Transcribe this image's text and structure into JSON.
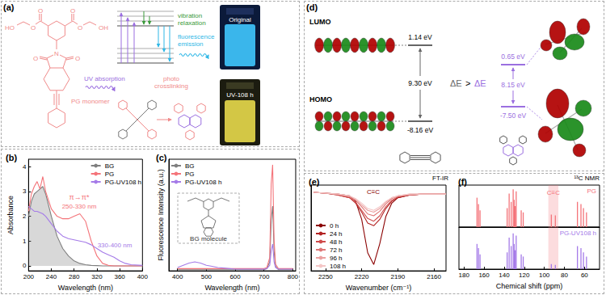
{
  "panel_a": {
    "label": "(a)",
    "molecule_label": "PG monomer",
    "atoms": [
      "HO",
      "O",
      "O",
      "O",
      "O",
      "OH",
      "O",
      "N",
      "O"
    ],
    "absorption": "UV absorption",
    "relaxation": "vibration relaxation",
    "emission": "fluorescence emission",
    "vial_before": "Original",
    "vial_after": "UV-108 h",
    "reaction": "photo crosslinking"
  },
  "panel_d": {
    "label": "(d)",
    "lumo": "LUMO",
    "homo": "HOMO",
    "left": {
      "lumo_energy": "1.14 eV",
      "gap": "9.30 eV",
      "homo_energy": "-8.16 eV"
    },
    "right": {
      "lumo_energy": "0.65 eV",
      "gap": "8.15 eV",
      "homo_energy": "-7.50 eV"
    },
    "comparison": [
      "ΔE",
      ">",
      "ΔE"
    ]
  },
  "chart_data": [
    {
      "title": "(b)",
      "type": "line",
      "xlabel": "Wavelength (nm)",
      "ylabel": "Absorbance",
      "x": [
        200,
        205,
        210,
        215,
        220,
        225,
        230,
        240,
        250,
        260,
        270,
        280,
        290,
        300,
        310,
        320,
        330,
        340,
        350,
        360,
        370,
        380,
        400
      ],
      "xlim": [
        200,
        400
      ],
      "xticks": [
        200,
        240,
        280,
        320,
        360,
        400
      ],
      "ylim": [
        -0.2,
        4.3
      ],
      "yticks": [
        0,
        1,
        2,
        3,
        4
      ],
      "legend": "upper right",
      "annotations": [
        "π→π*",
        "250-330 nm",
        "330-400 nm"
      ],
      "series": [
        {
          "name": "BG",
          "color": "#7f7f7f",
          "values": [
            2.0,
            2.6,
            2.9,
            3.0,
            3.1,
            3.2,
            2.9,
            2.0,
            1.2,
            0.7,
            0.4,
            0.2,
            0.1,
            0.05,
            0.02,
            0.01,
            0,
            0,
            0,
            0,
            0,
            0,
            0
          ]
        },
        {
          "name": "PG",
          "color": "#f4747a",
          "values": [
            2.2,
            2.9,
            3.2,
            3.4,
            3.1,
            3.6,
            3.0,
            2.3,
            2.0,
            1.9,
            1.9,
            2.0,
            2.1,
            1.8,
            1.0,
            0.4,
            0.1,
            0.02,
            0,
            0,
            0,
            0,
            0
          ]
        },
        {
          "name": "PG-UV108 h",
          "color": "#a57be8",
          "values": [
            2.4,
            2.3,
            2.2,
            2.2,
            2.15,
            2.1,
            2.0,
            1.7,
            1.4,
            1.2,
            1.1,
            1.05,
            1.0,
            0.95,
            0.85,
            0.7,
            0.55,
            0.45,
            0.35,
            0.2,
            0.1,
            0.05,
            0.02
          ]
        }
      ]
    },
    {
      "title": "(c)",
      "type": "line",
      "xlabel": "Wavelength (nm)",
      "ylabel": "Fluorescence Intensity (a.u.)",
      "x": [
        400,
        420,
        440,
        460,
        480,
        500,
        520,
        540,
        560,
        580,
        600,
        620,
        640,
        660,
        680,
        700,
        710,
        720,
        725,
        730,
        735,
        740,
        750,
        760,
        780,
        800
      ],
      "xlim": [
        370,
        810
      ],
      "xticks": [
        400,
        500,
        600,
        700,
        800
      ],
      "ylim": [
        0,
        100
      ],
      "tick_labels": "x",
      "legend": "upper left",
      "annotations": [
        "BG molecule"
      ],
      "series": [
        {
          "name": "BG",
          "color": "#7f7f7f",
          "values": [
            1,
            1,
            1,
            1,
            1,
            1,
            1,
            1,
            1,
            1,
            1,
            1,
            1,
            1,
            1,
            1,
            2,
            8,
            45,
            58,
            18,
            4,
            1,
            1,
            1,
            1
          ]
        },
        {
          "name": "PG",
          "color": "#f4747a",
          "values": [
            2,
            2,
            2,
            2,
            2,
            2,
            2,
            2,
            2,
            2,
            2,
            2,
            2,
            2,
            2,
            2,
            3,
            12,
            78,
            95,
            28,
            6,
            2,
            2,
            2,
            2
          ]
        },
        {
          "name": "PG-UV108 h",
          "color": "#a57be8",
          "values": [
            3,
            5,
            7,
            8,
            7,
            5,
            4,
            3,
            2.5,
            2,
            1.5,
            1.5,
            1.5,
            1.5,
            1.5,
            1.5,
            2,
            5,
            18,
            24,
            8,
            3,
            1.5,
            1.5,
            1.5,
            1.5
          ]
        }
      ]
    },
    {
      "title": "(e)",
      "type": "line",
      "xlabel": "Wavenumber (cm⁻¹)",
      "x": [
        2260,
        2250,
        2240,
        2230,
        2225,
        2220,
        2215,
        2210,
        2205,
        2200,
        2195,
        2190,
        2180,
        2170,
        2160,
        2150
      ],
      "xlim": [
        2262,
        2150
      ],
      "xticks": [
        2250,
        2220,
        2190,
        2160
      ],
      "ylim": [
        5,
        100
      ],
      "tick_labels": "x",
      "legend": "lower left",
      "annotations": [
        "FT-IR",
        "C≡C"
      ],
      "series": [
        {
          "name": "0 h",
          "color": "#8b0000",
          "values": [
            92,
            91,
            90,
            88,
            82,
            62,
            25,
            12,
            35,
            65,
            80,
            86,
            89,
            90,
            90,
            90
          ]
        },
        {
          "name": "24 h",
          "color": "#b22222",
          "values": [
            92,
            91,
            89,
            86,
            80,
            70,
            58,
            55,
            62,
            74,
            82,
            86,
            89,
            90,
            90,
            90
          ]
        },
        {
          "name": "48 h",
          "color": "#cf4a4a",
          "values": [
            92,
            91,
            89,
            86,
            81,
            72,
            63,
            60,
            66,
            76,
            83,
            87,
            89,
            90,
            90,
            90
          ]
        },
        {
          "name": "72 h",
          "color": "#de7575",
          "values": [
            92,
            91,
            90,
            87,
            83,
            76,
            68,
            66,
            71,
            79,
            85,
            88,
            89,
            90,
            90,
            90
          ]
        },
        {
          "name": "96 h",
          "color": "#eba0a0",
          "values": [
            92,
            91,
            90,
            88,
            84,
            78,
            72,
            70,
            74,
            81,
            86,
            88,
            90,
            90,
            90,
            90
          ]
        },
        {
          "name": "108 h",
          "color": "#f4c6c6",
          "values": [
            92,
            91,
            90,
            88,
            85,
            80,
            74,
            72,
            76,
            82,
            86,
            88,
            90,
            90,
            90,
            90
          ]
        }
      ]
    },
    {
      "title": "(f)",
      "type": "bar",
      "xlabel": "Chemical shift (ppm)",
      "xlim": [
        185,
        45
      ],
      "xticks": [
        180,
        160,
        140,
        120,
        100,
        80,
        60
      ],
      "ylim": [
        0,
        100
      ],
      "tick_labels": "x",
      "annotations": [
        "¹³C NMR",
        "C≡C"
      ],
      "highlight_range": [
        86,
        96
      ],
      "series": [
        {
          "name": "PG",
          "color": "#f4747a",
          "x": [
            167,
            165.5,
            164,
            137,
            135,
            133,
            131,
            130,
            129,
            128,
            123,
            121,
            93,
            89,
            67,
            63.5,
            61,
            58
          ],
          "values": [
            70,
            55,
            40,
            45,
            80,
            60,
            90,
            65,
            50,
            85,
            40,
            35,
            30,
            28,
            60,
            55,
            45,
            35
          ]
        },
        {
          "name": "PG-UV108 h",
          "color": "#a57be8",
          "x": [
            167,
            165.5,
            164,
            137,
            135,
            133,
            131,
            130,
            129,
            128,
            123,
            121,
            93,
            89,
            67,
            63.5,
            61,
            58
          ],
          "values": [
            60,
            50,
            35,
            40,
            75,
            55,
            85,
            60,
            45,
            80,
            35,
            30,
            12,
            10,
            55,
            50,
            40,
            30
          ]
        }
      ]
    }
  ]
}
